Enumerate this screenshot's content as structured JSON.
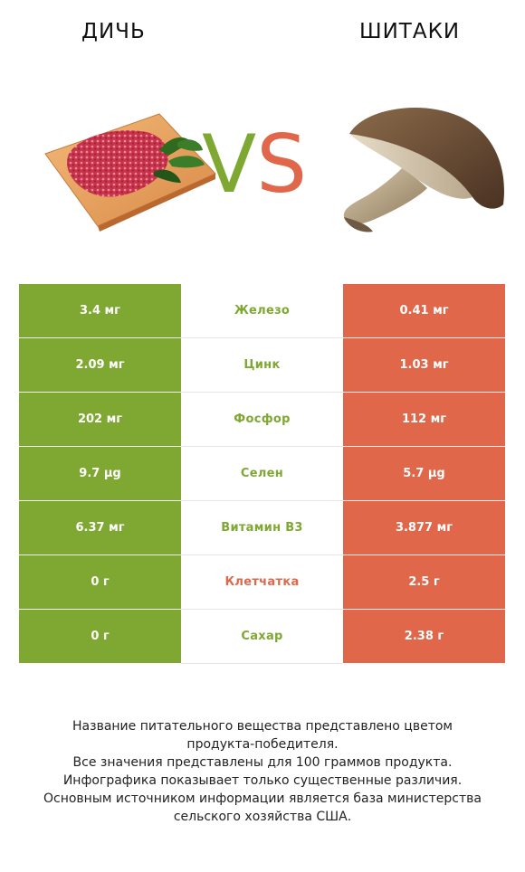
{
  "header": {
    "left_title": "ДИЧЬ",
    "right_title": "ШИТАКИ",
    "vs_v": "V",
    "vs_s": "S"
  },
  "colors": {
    "left_accent": "#7ea832",
    "right_accent": "#e0674a"
  },
  "rows": [
    {
      "left": "3.4 мг",
      "nutrient": "Железо",
      "right": "0.41 мг",
      "winner": "left"
    },
    {
      "left": "2.09 мг",
      "nutrient": "Цинк",
      "right": "1.03 мг",
      "winner": "left"
    },
    {
      "left": "202 мг",
      "nutrient": "Фосфор",
      "right": "112 мг",
      "winner": "left"
    },
    {
      "left": "9.7 µg",
      "nutrient": "Селен",
      "right": "5.7 µg",
      "winner": "left"
    },
    {
      "left": "6.37 мг",
      "nutrient": "Витамин B3",
      "right": "3.877 мг",
      "winner": "left"
    },
    {
      "left": "0 г",
      "nutrient": "Клетчатка",
      "right": "2.5 г",
      "winner": "right"
    },
    {
      "left": "0 г",
      "nutrient": "Сахар",
      "right": "2.38 г",
      "winner": "left"
    }
  ],
  "footer": {
    "line1": "Название питательного вещества представлено цветом",
    "line2": "продукта-победителя.",
    "line3": "Все значения представлены для 100 граммов продукта.",
    "line4": "Инфографика показывает только существенные различия.",
    "line5": "Основным источником информации является база министерства",
    "line6": "сельского хозяйства США."
  }
}
